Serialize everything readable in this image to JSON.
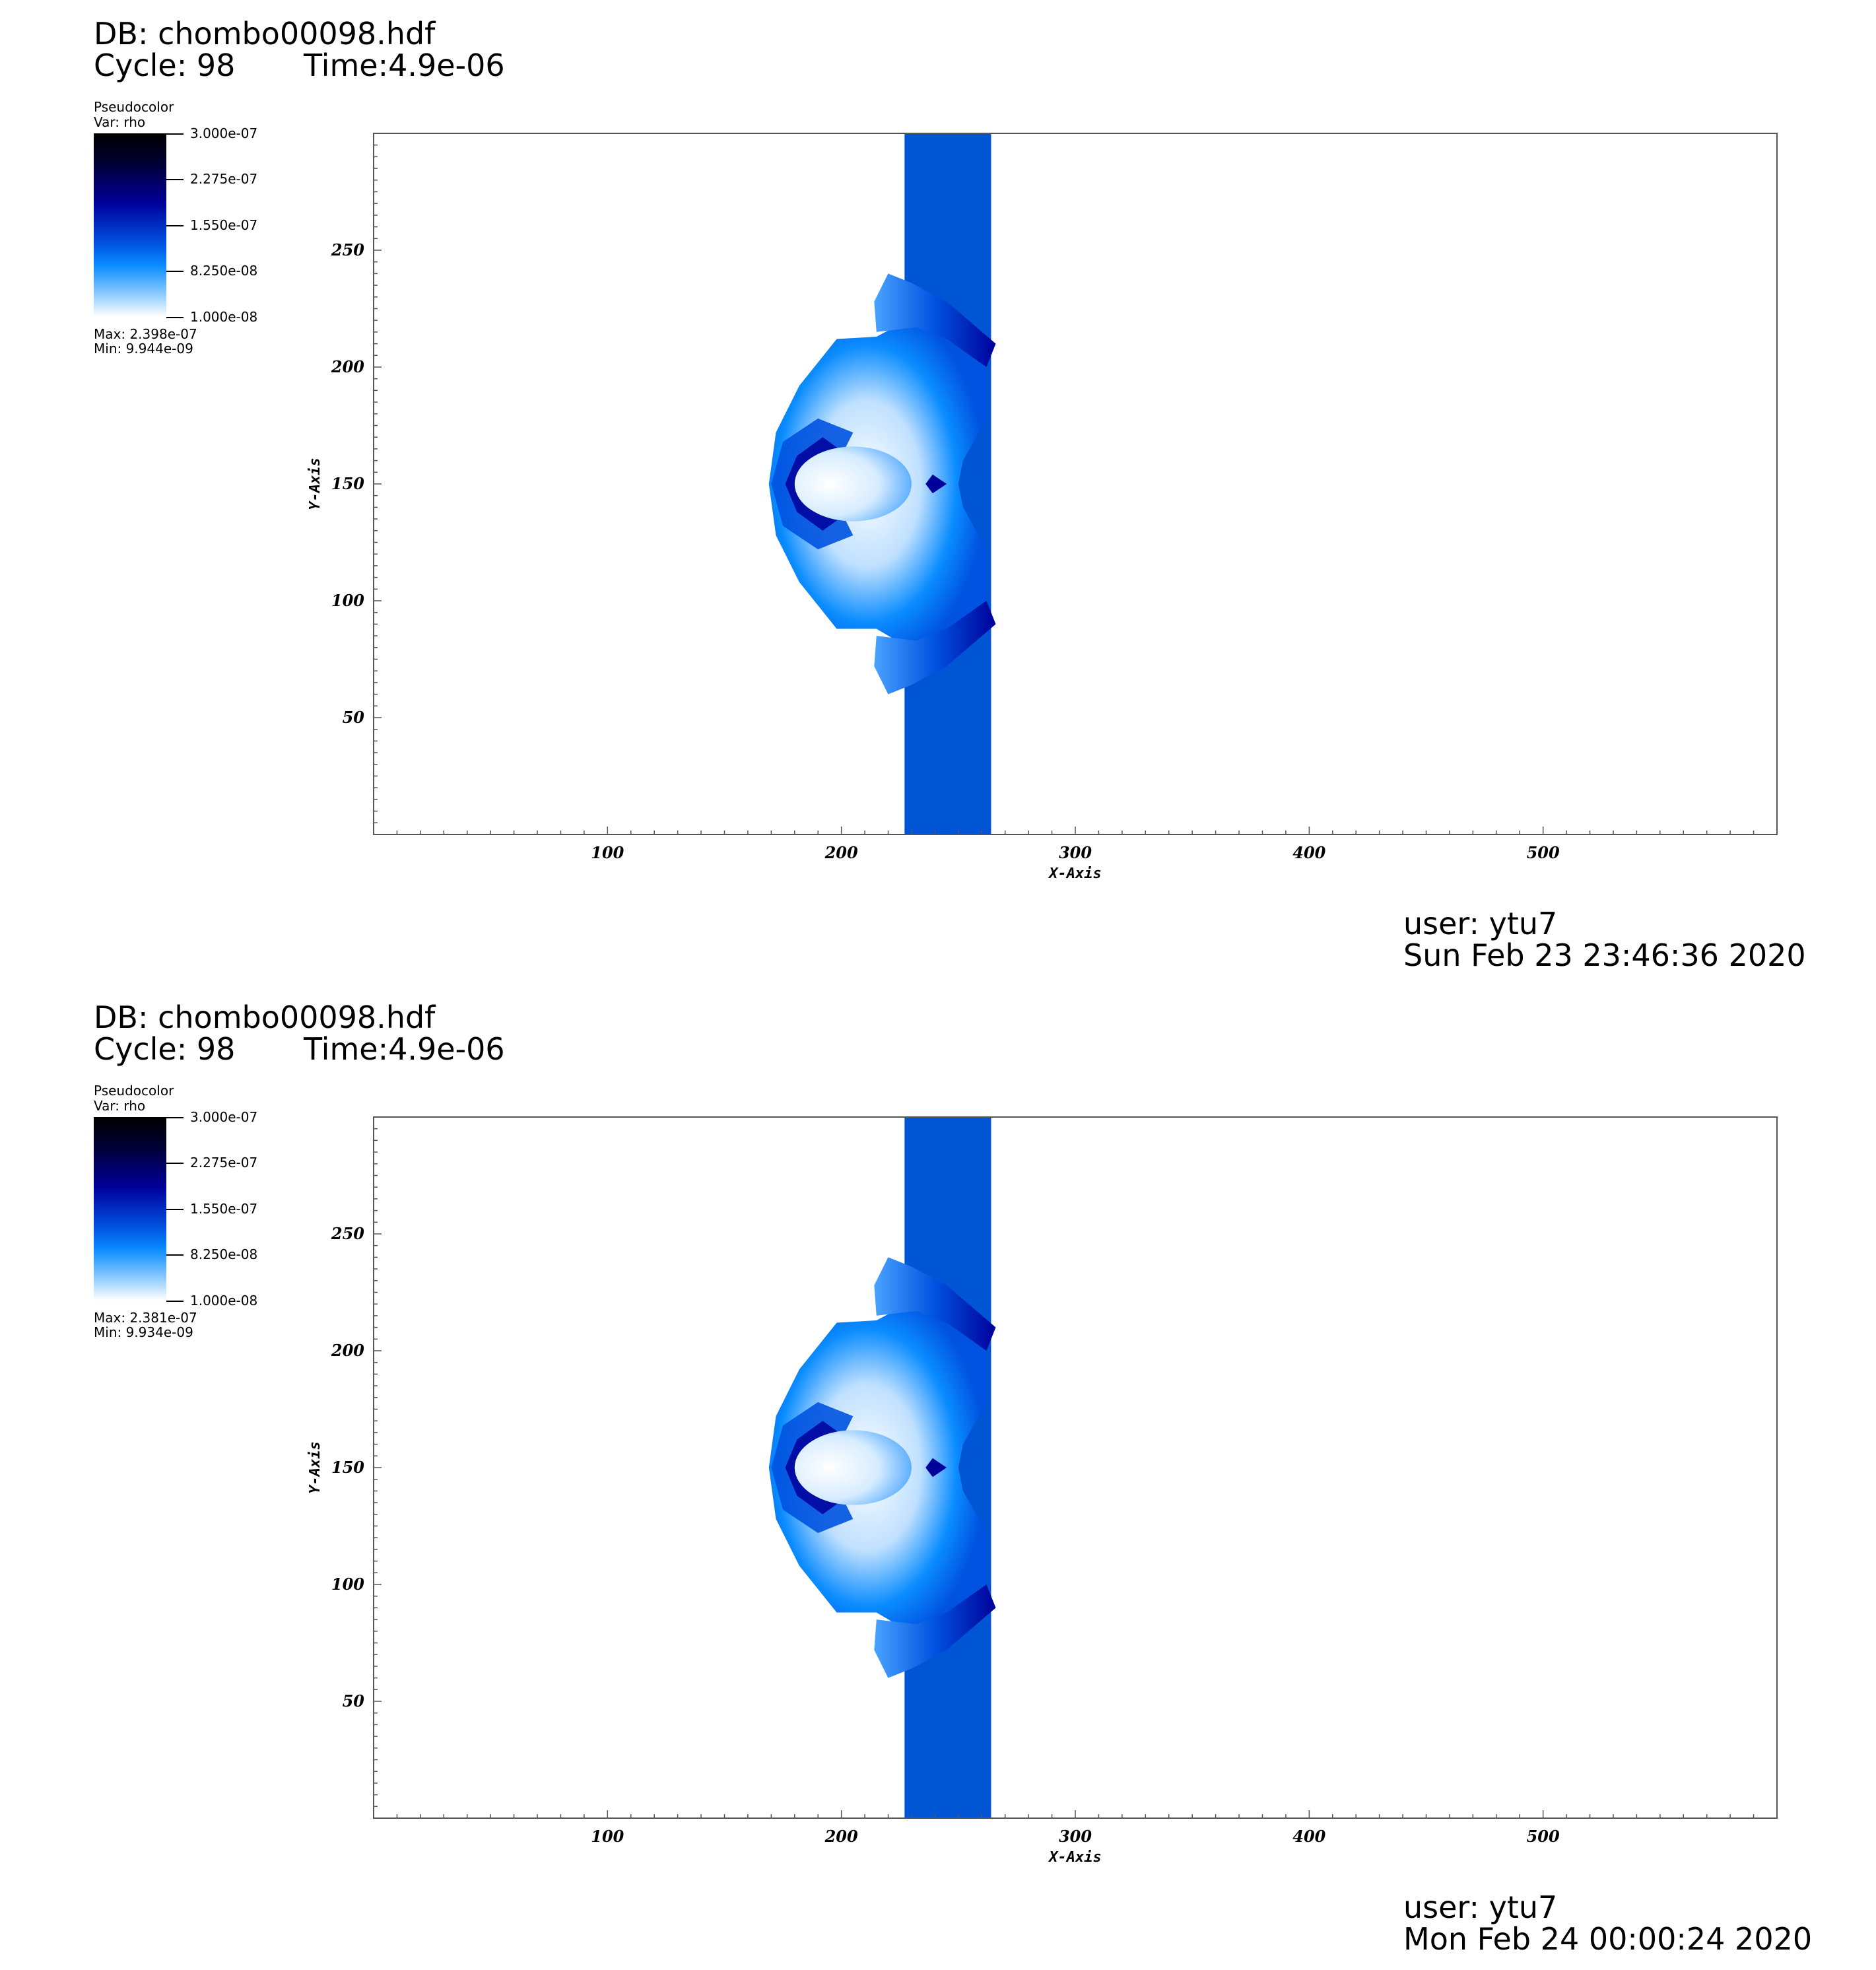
{
  "panels": [
    {
      "db": "DB: chombo00098.hdf",
      "cycle": "Cycle: 98",
      "time": "Time:4.9e-06",
      "legend": {
        "title": "Pseudocolor",
        "var": "Var: rho",
        "ticks": [
          "3.000e-07",
          "2.275e-07",
          "1.550e-07",
          "8.250e-08",
          "1.000e-08"
        ],
        "max": "Max:  2.398e-07",
        "min": "Min:  9.944e-09"
      },
      "user": "user: ytu7",
      "date": "Sun Feb 23 23:46:36 2020"
    },
    {
      "db": "DB: chombo00098.hdf",
      "cycle": "Cycle: 98",
      "time": "Time:4.9e-06",
      "legend": {
        "title": "Pseudocolor",
        "var": "Var: rho",
        "ticks": [
          "3.000e-07",
          "2.275e-07",
          "1.550e-07",
          "8.250e-08",
          "1.000e-08"
        ],
        "max": "Max:  2.381e-07",
        "min": "Min:  9.934e-09"
      },
      "user": "user: ytu7",
      "date": "Mon Feb 24 00:00:24 2020"
    }
  ],
  "chart_data": [
    {
      "type": "heatmap",
      "xlabel": "X-Axis",
      "ylabel": "Y-Axis",
      "xlim": [
        0,
        600
      ],
      "ylim": [
        0,
        300
      ],
      "xticks": [
        100,
        200,
        300,
        400,
        500
      ],
      "yticks": [
        50,
        100,
        150,
        200,
        250
      ],
      "colormap": [
        "#ffffff",
        "#0a8cff",
        "#0052e0",
        "#00009a",
        "#000033",
        "#000000"
      ],
      "band_color": "#0055d4",
      "band_x": [
        227,
        264
      ]
    },
    {
      "type": "heatmap",
      "xlabel": "X-Axis",
      "ylabel": "Y-Axis",
      "xlim": [
        0,
        600
      ],
      "ylim": [
        0,
        300
      ],
      "xticks": [
        100,
        200,
        300,
        400,
        500
      ],
      "yticks": [
        50,
        100,
        150,
        200,
        250
      ],
      "colormap": [
        "#ffffff",
        "#0a8cff",
        "#0052e0",
        "#00009a",
        "#000033",
        "#000000"
      ],
      "band_color": "#0055d4",
      "band_x": [
        227,
        264
      ]
    }
  ]
}
